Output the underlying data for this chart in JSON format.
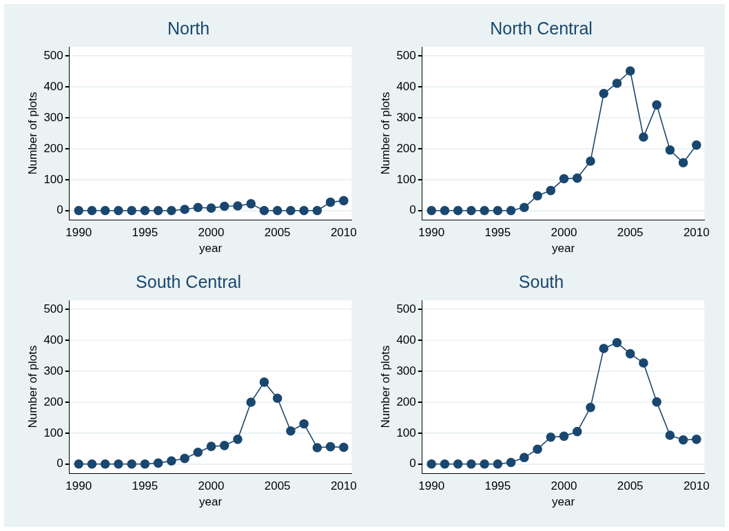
{
  "chart_data": [
    {
      "type": "line",
      "title": "North",
      "xlabel": "year",
      "ylabel": "Number of plots",
      "x": [
        1990,
        1991,
        1992,
        1993,
        1994,
        1995,
        1996,
        1997,
        1998,
        1999,
        2000,
        2001,
        2002,
        2003,
        2004,
        2005,
        2006,
        2007,
        2008,
        2009,
        2010
      ],
      "series": [
        {
          "color": "#1a476f",
          "values": [
            0,
            0,
            0,
            0,
            0,
            0,
            0,
            0,
            4,
            10,
            8,
            14,
            15,
            22,
            0,
            0,
            0,
            0,
            0,
            27,
            32
          ]
        }
      ],
      "xlim": [
        1989.3,
        2010.6
      ],
      "xticks": [
        1990,
        1995,
        2000,
        2005,
        2010
      ],
      "ylim": [
        -30,
        530
      ],
      "yticks": [
        0,
        100,
        200,
        300,
        400,
        500
      ],
      "grid": "y",
      "marker": "circle",
      "line_style": "solid",
      "legend": false
    },
    {
      "type": "line",
      "title": "North Central",
      "xlabel": "year",
      "ylabel": "Number of plots",
      "x": [
        1990,
        1991,
        1992,
        1993,
        1994,
        1995,
        1996,
        1997,
        1998,
        1999,
        2000,
        2001,
        2002,
        2003,
        2004,
        2005,
        2006,
        2007,
        2008,
        2009,
        2010
      ],
      "series": [
        {
          "color": "#1a476f",
          "values": [
            0,
            0,
            0,
            0,
            0,
            0,
            0,
            10,
            48,
            65,
            103,
            105,
            160,
            379,
            412,
            452,
            238,
            342,
            196,
            155,
            212
          ]
        }
      ],
      "xlim": [
        1989.3,
        2010.6
      ],
      "xticks": [
        1990,
        1995,
        2000,
        2005,
        2010
      ],
      "ylim": [
        -30,
        530
      ],
      "yticks": [
        0,
        100,
        200,
        300,
        400,
        500
      ],
      "grid": "y",
      "marker": "circle",
      "line_style": "solid",
      "legend": false
    },
    {
      "type": "line",
      "title": "South Central",
      "xlabel": "year",
      "ylabel": "Number of plots",
      "x": [
        1990,
        1991,
        1992,
        1993,
        1994,
        1995,
        1996,
        1997,
        1998,
        1999,
        2000,
        2001,
        2002,
        2003,
        2004,
        2005,
        2006,
        2007,
        2008,
        2009,
        2010
      ],
      "series": [
        {
          "color": "#1a476f",
          "values": [
            0,
            0,
            0,
            0,
            0,
            0,
            3,
            10,
            18,
            38,
            57,
            60,
            80,
            200,
            265,
            213,
            107,
            130,
            53,
            56,
            54
          ]
        }
      ],
      "xlim": [
        1989.3,
        2010.6
      ],
      "xticks": [
        1990,
        1995,
        2000,
        2005,
        2010
      ],
      "ylim": [
        -30,
        530
      ],
      "yticks": [
        0,
        100,
        200,
        300,
        400,
        500
      ],
      "grid": "y",
      "marker": "circle",
      "line_style": "solid",
      "legend": false
    },
    {
      "type": "line",
      "title": "South",
      "xlabel": "year",
      "ylabel": "Number of plots",
      "x": [
        1990,
        1991,
        1992,
        1993,
        1994,
        1995,
        1996,
        1997,
        1998,
        1999,
        2000,
        2001,
        2002,
        2003,
        2004,
        2005,
        2006,
        2007,
        2008,
        2009,
        2010
      ],
      "series": [
        {
          "color": "#1a476f",
          "values": [
            0,
            0,
            0,
            0,
            0,
            0,
            5,
            21,
            48,
            87,
            90,
            105,
            183,
            374,
            393,
            357,
            327,
            201,
            93,
            78,
            80
          ]
        }
      ],
      "xlim": [
        1989.3,
        2010.6
      ],
      "xticks": [
        1990,
        1995,
        2000,
        2005,
        2010
      ],
      "ylim": [
        -30,
        530
      ],
      "yticks": [
        0,
        100,
        200,
        300,
        400,
        500
      ],
      "grid": "y",
      "marker": "circle",
      "line_style": "solid",
      "legend": false
    }
  ]
}
